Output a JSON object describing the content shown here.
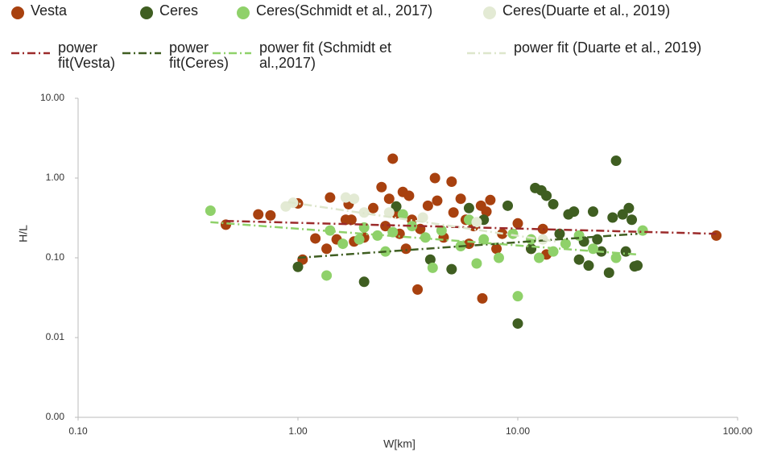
{
  "chart_data": {
    "type": "scatter",
    "xlabel": "W[km]",
    "ylabel": "H/L",
    "xlog": true,
    "ylog": true,
    "xlim": [
      0.1,
      100
    ],
    "ylim": [
      0.001,
      10
    ],
    "xticks": [
      {
        "value": 0.1,
        "label": "0.10"
      },
      {
        "value": 1,
        "label": "1.00"
      },
      {
        "value": 10,
        "label": "10.00"
      },
      {
        "value": 100,
        "label": "100.00"
      }
    ],
    "yticks": [
      {
        "value": 0.001,
        "label": "0.00"
      },
      {
        "value": 0.01,
        "label": "0.01"
      },
      {
        "value": 0.1,
        "label": "0.10"
      },
      {
        "value": 1,
        "label": "1.00"
      },
      {
        "value": 10,
        "label": "10.00"
      }
    ],
    "series": [
      {
        "name": "Vesta",
        "type": "scatter",
        "color": "#a8410f",
        "x": [
          0.47,
          0.66,
          0.75,
          1.0,
          1.05,
          1.2,
          1.35,
          1.4,
          1.5,
          1.65,
          1.7,
          1.75,
          1.8,
          2.0,
          2.2,
          2.4,
          2.5,
          2.6,
          2.7,
          2.8,
          2.9,
          3.0,
          3.1,
          3.2,
          3.3,
          3.5,
          3.6,
          3.9,
          4.2,
          4.3,
          4.6,
          5.0,
          5.1,
          5.5,
          5.8,
          6.0,
          6.3,
          6.8,
          6.9,
          7.2,
          7.5,
          8.0,
          8.5,
          10.0,
          11.5,
          13.0,
          13.5,
          80
        ],
        "values": [
          0.26,
          0.35,
          0.34,
          0.48,
          0.095,
          0.175,
          0.13,
          0.57,
          0.17,
          0.3,
          0.47,
          0.3,
          0.16,
          0.18,
          0.42,
          0.77,
          0.25,
          0.55,
          1.75,
          0.36,
          0.2,
          0.67,
          0.13,
          0.6,
          0.3,
          0.04,
          0.23,
          0.45,
          1.0,
          0.52,
          0.18,
          0.9,
          0.37,
          0.55,
          0.3,
          0.15,
          0.25,
          0.45,
          0.031,
          0.38,
          0.53,
          0.13,
          0.2,
          0.27,
          0.13,
          0.23,
          0.11,
          0.19
        ]
      },
      {
        "name": "Ceres",
        "type": "scatter",
        "color": "#3f5e21",
        "x": [
          1.0,
          2.0,
          2.8,
          4.0,
          5.0,
          6.0,
          7.0,
          9.0,
          10.0,
          11.5,
          12.0,
          12.8,
          13.5,
          14.5,
          15.5,
          17.0,
          18.0,
          19.0,
          20.0,
          21.0,
          22.0,
          23.0,
          24.0,
          26.0,
          27.0,
          28.0,
          30.0,
          31.0,
          32.0,
          33.0,
          34.0,
          35.0
        ],
        "values": [
          0.077,
          0.05,
          0.44,
          0.095,
          0.072,
          0.42,
          0.3,
          0.45,
          0.015,
          0.13,
          0.75,
          0.7,
          0.6,
          0.47,
          0.2,
          0.35,
          0.38,
          0.095,
          0.16,
          0.08,
          0.38,
          0.17,
          0.12,
          0.065,
          0.32,
          1.65,
          0.35,
          0.12,
          0.42,
          0.3,
          0.078,
          0.08
        ]
      },
      {
        "name": "Ceres(Schmidt et al., 2017)",
        "type": "scatter",
        "color": "#8fd16a",
        "x": [
          0.4,
          1.35,
          1.4,
          1.6,
          1.9,
          2.0,
          2.3,
          2.5,
          2.7,
          3.0,
          3.3,
          3.8,
          4.1,
          4.5,
          5.5,
          6.0,
          6.5,
          7.0,
          8.2,
          9.5,
          10.0,
          11.5,
          12.5,
          14.5,
          16.5,
          19.0,
          22.0,
          28.0,
          37.0
        ],
        "values": [
          0.39,
          0.06,
          0.22,
          0.15,
          0.17,
          0.24,
          0.19,
          0.12,
          0.21,
          0.35,
          0.25,
          0.18,
          0.075,
          0.22,
          0.14,
          0.3,
          0.085,
          0.17,
          0.1,
          0.2,
          0.033,
          0.17,
          0.1,
          0.12,
          0.15,
          0.19,
          0.13,
          0.1,
          0.22
        ]
      },
      {
        "name": "Ceres(Duarte et al., 2019)",
        "type": "scatter",
        "color": "#e3ead4",
        "x": [
          0.88,
          0.95,
          1.65,
          1.8,
          2.0,
          2.6,
          3.7,
          6.5,
          13.0
        ],
        "values": [
          0.44,
          0.49,
          0.57,
          0.55,
          0.37,
          0.37,
          0.32,
          0.28,
          0.17
        ]
      },
      {
        "name": "power fit(Vesta)",
        "type": "line",
        "color": "#9b2a2a",
        "x": [
          0.47,
          80
        ],
        "values": [
          0.29,
          0.2
        ]
      },
      {
        "name": "power fit(Ceres)",
        "type": "line",
        "color": "#3f5e21",
        "x": [
          1.0,
          35
        ],
        "values": [
          0.1,
          0.2
        ]
      },
      {
        "name": "power fit (Schmidt et al.,2017)",
        "type": "line",
        "color": "#8fd16a",
        "x": [
          0.4,
          35
        ],
        "values": [
          0.28,
          0.11
        ]
      },
      {
        "name": "power fit (Duarte et al., 2019)",
        "type": "line",
        "color": "#dde6cc",
        "x": [
          0.9,
          15
        ],
        "values": [
          0.5,
          0.16
        ]
      }
    ]
  }
}
